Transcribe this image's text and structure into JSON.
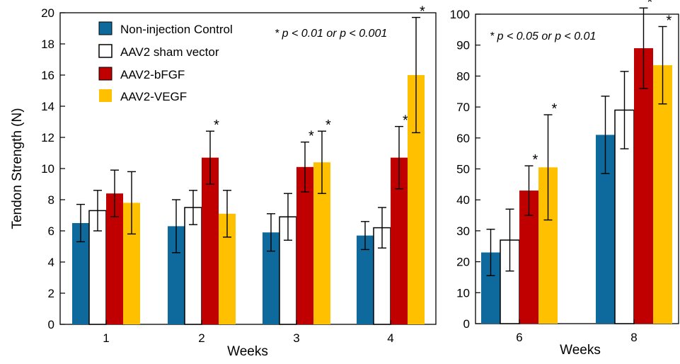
{
  "colors": {
    "control": "#0E6A9C",
    "sham": "#FFFFFF",
    "bfgf": "#C00000",
    "vegf": "#FFC000"
  },
  "chart_data": [
    {
      "type": "bar",
      "ylabel": "Tendon Strength (N)",
      "xlabel": "Weeks",
      "ylim": [
        0,
        20
      ],
      "yticks": [
        0,
        2,
        4,
        6,
        8,
        10,
        12,
        14,
        16,
        18,
        20
      ],
      "categories": [
        "1",
        "2",
        "3",
        "4"
      ],
      "annotation": "* p < 0.01 or p < 0.001",
      "legend": {
        "placement": "top-left"
      },
      "series": [
        {
          "name": "Non-injection Control",
          "color_key": "control",
          "values": [
            6.5,
            6.3,
            5.9,
            5.7
          ],
          "errors": [
            1.2,
            1.7,
            1.2,
            0.9
          ],
          "significant": [
            false,
            false,
            false,
            false
          ]
        },
        {
          "name": "AAV2 sham vector",
          "color_key": "sham",
          "values": [
            7.3,
            7.5,
            6.9,
            6.2
          ],
          "errors": [
            1.3,
            1.1,
            1.5,
            1.3
          ],
          "significant": [
            false,
            false,
            false,
            false
          ]
        },
        {
          "name": "AAV2-bFGF",
          "color_key": "bfgf",
          "values": [
            8.4,
            10.7,
            10.1,
            10.7
          ],
          "errors": [
            1.5,
            1.7,
            1.6,
            2.0
          ],
          "significant": [
            false,
            true,
            true,
            true
          ]
        },
        {
          "name": "AAV2-VEGF",
          "color_key": "vegf",
          "values": [
            7.8,
            7.1,
            10.4,
            16.0
          ],
          "errors": [
            2.0,
            1.5,
            2.0,
            3.7
          ],
          "significant": [
            false,
            false,
            true,
            true
          ]
        }
      ]
    },
    {
      "type": "bar",
      "xlabel": "Weeks",
      "ylim": [
        0,
        100
      ],
      "yticks": [
        0,
        10,
        20,
        30,
        40,
        50,
        60,
        70,
        80,
        90,
        100
      ],
      "categories": [
        "6",
        "8"
      ],
      "annotation": "* p < 0.05 or p < 0.01",
      "series": [
        {
          "name": "Non-injection Control",
          "color_key": "control",
          "values": [
            23,
            61
          ],
          "errors": [
            7.5,
            12.5
          ],
          "significant": [
            false,
            false
          ]
        },
        {
          "name": "AAV2 sham vector",
          "color_key": "sham",
          "values": [
            27,
            69
          ],
          "errors": [
            10,
            12.5
          ],
          "significant": [
            false,
            false
          ]
        },
        {
          "name": "AAV2-bFGF",
          "color_key": "bfgf",
          "values": [
            43,
            89
          ],
          "errors": [
            8,
            13
          ],
          "significant": [
            true,
            true
          ]
        },
        {
          "name": "AAV2-VEGF",
          "color_key": "vegf",
          "values": [
            50.5,
            83.5
          ],
          "errors": [
            17,
            12.5
          ],
          "significant": [
            true,
            true
          ]
        }
      ]
    }
  ]
}
